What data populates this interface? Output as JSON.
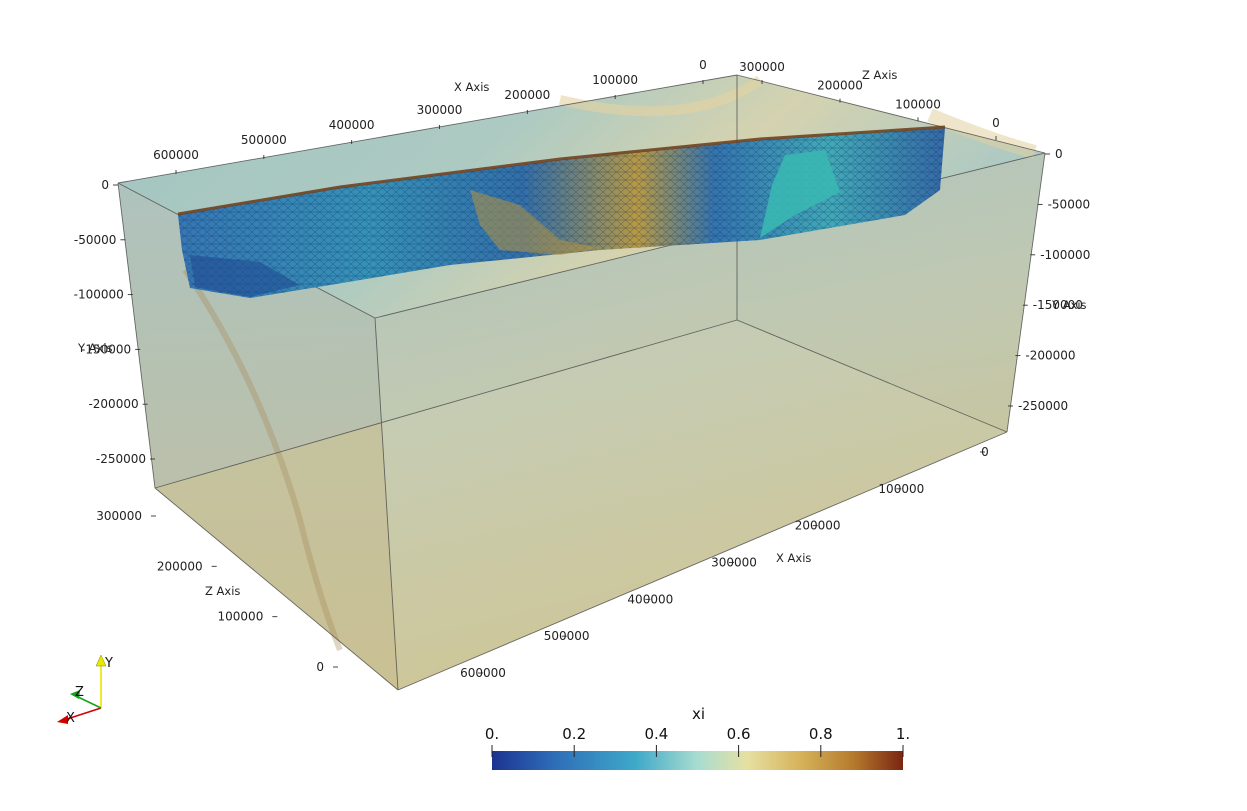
{
  "axes": {
    "x_title": "X Axis",
    "y_title": "Y Axis",
    "z_title": "Z Axis",
    "top_x_ticks": [
      "600000",
      "500000",
      "400000",
      "300000",
      "200000",
      "100000",
      "0"
    ],
    "top_z_ticks": [
      "300000",
      "200000",
      "100000",
      "0"
    ],
    "left_y_ticks": [
      "0",
      "-50000",
      "-100000",
      "-150000",
      "-200000",
      "-250000"
    ],
    "right_y_ticks": [
      "0",
      "-50000",
      "-100000",
      "-150000",
      "-200000",
      "-250000"
    ],
    "bottom_z_ticks": [
      "300000",
      "200000",
      "100000",
      "0"
    ],
    "bottom_x_ticks": [
      "0",
      "100000",
      "200000",
      "300000",
      "400000",
      "500000",
      "600000"
    ]
  },
  "colorbar": {
    "title": "xi",
    "labels": [
      "0.",
      "0.2",
      "0.4",
      "0.6",
      "0.8",
      "1."
    ],
    "colors": [
      "#1c3391",
      "#2e6db8",
      "#3fa9c9",
      "#a8dcd0",
      "#e6e0a2",
      "#d6b35a",
      "#b57a2c",
      "#7a2512"
    ]
  },
  "orientation_axes": {
    "x_label": "X",
    "y_label": "Y",
    "z_label": "Z",
    "x_color": "#d40000",
    "y_color": "#e9e600",
    "z_color": "#15a31b"
  }
}
